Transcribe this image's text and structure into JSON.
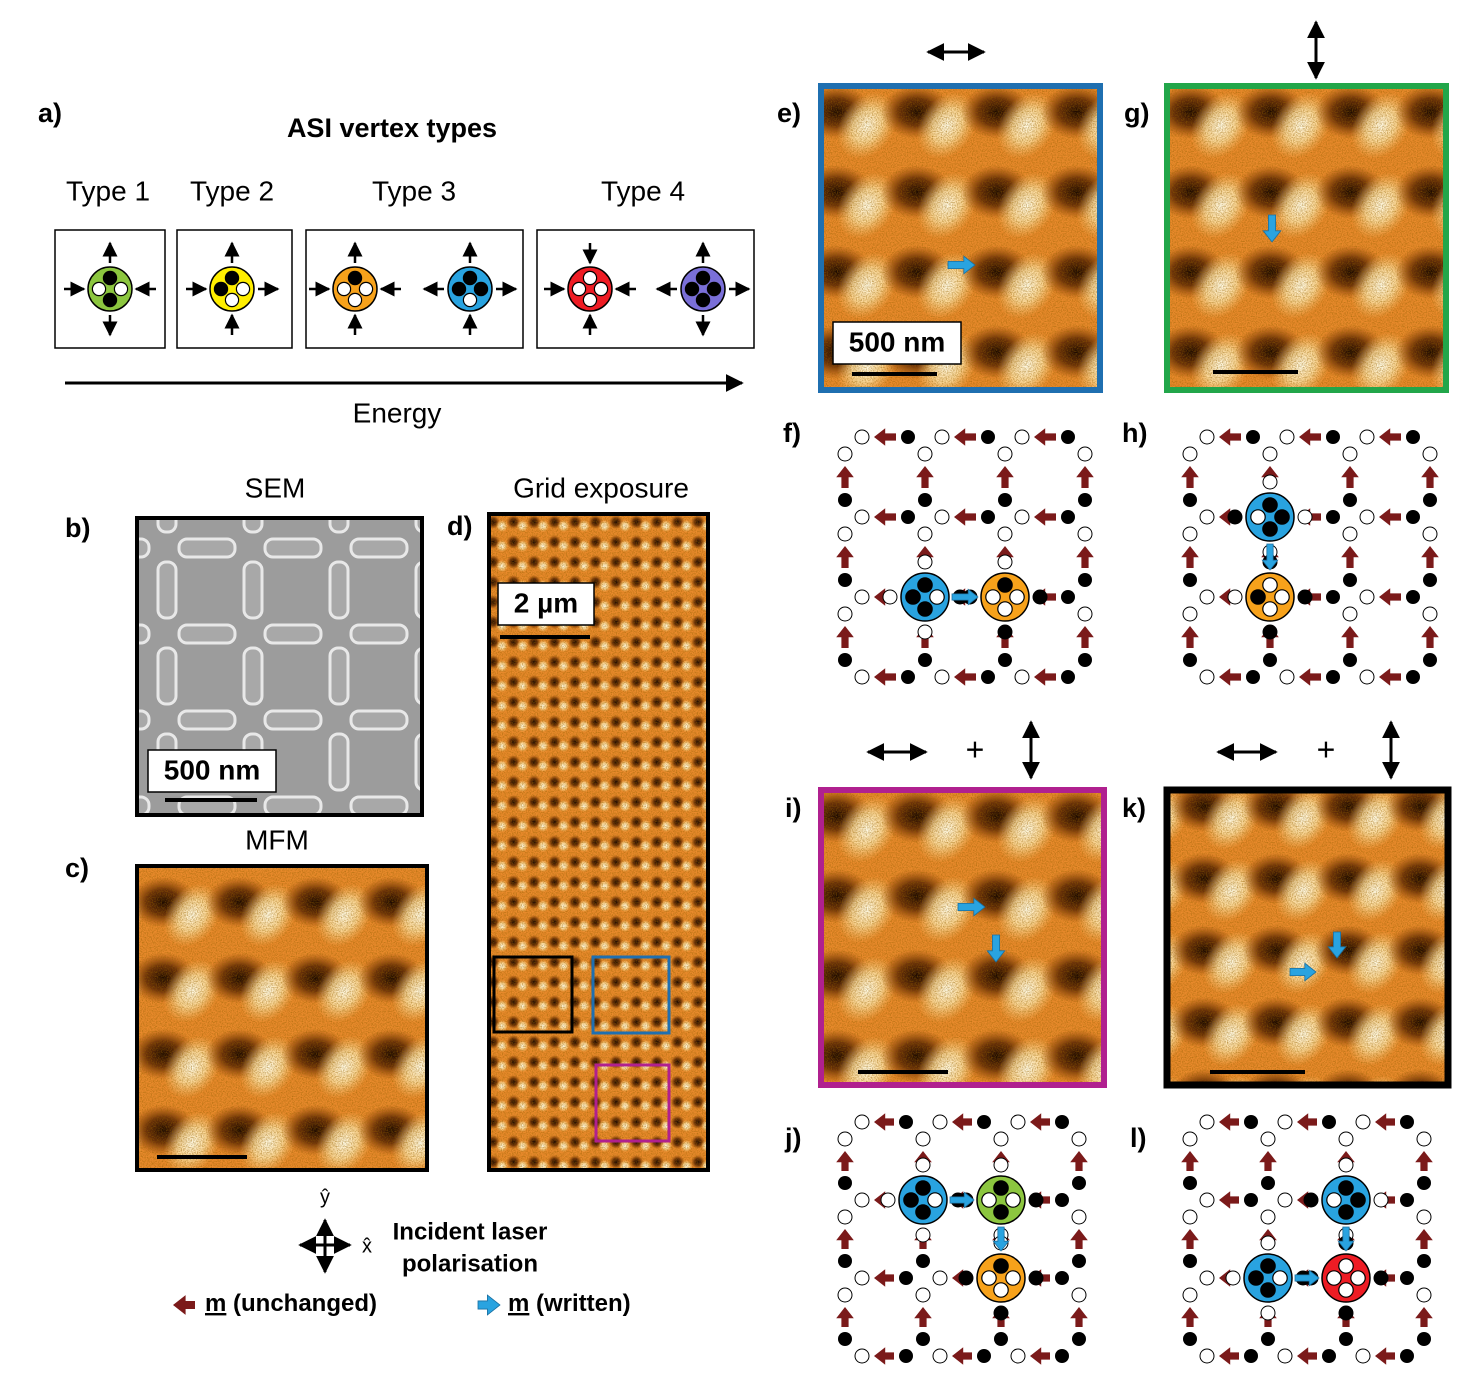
{
  "panels": {
    "a": "a)",
    "b": "b)",
    "c": "c)",
    "d": "d)",
    "e": "e)",
    "f": "f)",
    "g": "g)",
    "h": "h)",
    "i": "i)",
    "j": "j)",
    "k": "k)",
    "l": "l)"
  },
  "vertex_types": {
    "title": "ASI vertex types",
    "types": [
      "Type 1",
      "Type 2",
      "Type 3",
      "Type 4"
    ],
    "axis_label": "Energy"
  },
  "images": {
    "sem_title": "SEM",
    "mfm_title": "MFM",
    "grid_title": "Grid exposure",
    "scale_bars": [
      "500 nm",
      "2 µm",
      "500 nm"
    ]
  },
  "polarisation": {
    "y_axis": "ŷ",
    "x_axis": "x̂",
    "label_lines": [
      "Incident laser",
      "polarisation"
    ],
    "plus_signs": [
      "+",
      "+"
    ]
  },
  "legend": {
    "unchanged": {
      "symbol": "m",
      "text": "(unchanged)"
    },
    "written": {
      "symbol": "m",
      "text": "(written)"
    }
  }
}
